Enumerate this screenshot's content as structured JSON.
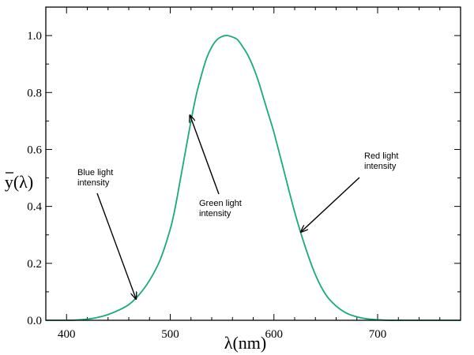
{
  "chart_data": {
    "type": "line",
    "title": "",
    "xlabel": "λ(nm)",
    "ylabel": "y(λ)",
    "ylabel_overline": true,
    "xlim": [
      380,
      780
    ],
    "ylim": [
      0,
      1.1
    ],
    "x_ticks": [
      400,
      500,
      600,
      700
    ],
    "x_tick_labels": [
      "400",
      "500",
      "600",
      "700"
    ],
    "y_ticks": [
      0,
      0.2,
      0.4,
      0.6,
      0.8,
      1.0
    ],
    "y_tick_labels": [
      "0.0",
      "0.2",
      "0.4",
      "0.6",
      "0.8",
      "1.0"
    ],
    "grid": false,
    "series": [
      {
        "color": "#1aaa7a",
        "x": [
          380,
          390,
          400,
          410,
          420,
          430,
          440,
          450,
          460,
          470,
          480,
          490,
          500,
          505,
          510,
          515,
          520,
          525,
          530,
          535,
          540,
          545,
          550,
          555,
          560,
          565,
          570,
          575,
          580,
          585,
          590,
          595,
          600,
          610,
          620,
          630,
          640,
          650,
          660,
          670,
          680,
          690,
          700,
          710,
          720,
          740,
          760,
          780
        ],
        "y": [
          0.0,
          0.0,
          0.0,
          0.001,
          0.004,
          0.01,
          0.02,
          0.035,
          0.055,
          0.09,
          0.14,
          0.21,
          0.32,
          0.4,
          0.5,
          0.6,
          0.7,
          0.79,
          0.86,
          0.92,
          0.96,
          0.985,
          0.997,
          1.0,
          0.995,
          0.985,
          0.96,
          0.93,
          0.89,
          0.84,
          0.78,
          0.72,
          0.66,
          0.52,
          0.38,
          0.26,
          0.16,
          0.09,
          0.05,
          0.025,
          0.012,
          0.005,
          0.002,
          0.0,
          0.0,
          0.0,
          0.0,
          0.0
        ]
      }
    ],
    "annotations": [
      {
        "lines": [
          "Blue light",
          "intensity"
        ],
        "point": [
          467,
          0.075
        ]
      },
      {
        "lines": [
          "Green light",
          "intensity"
        ],
        "point": [
          519,
          0.72
        ]
      },
      {
        "lines": [
          "Red light",
          "intensity"
        ],
        "point": [
          626,
          0.31
        ]
      }
    ]
  }
}
